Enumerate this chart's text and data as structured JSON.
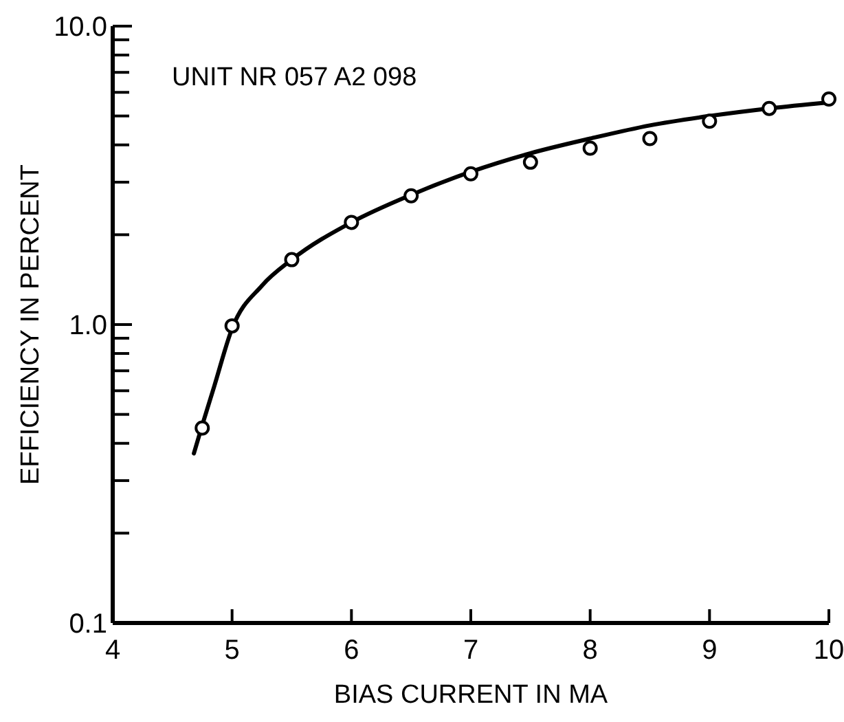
{
  "chart_data": {
    "type": "scatter",
    "xlabel": "BIAS CURRENT IN MA",
    "ylabel": "EFFICIENCY IN PERCENT",
    "annotations": [
      "UNIT NR 057 A2 098"
    ],
    "log": "y",
    "grid": false,
    "marker": "circle",
    "xlim": [
      4,
      10
    ],
    "xticks": [
      4,
      5,
      6,
      7,
      8,
      9,
      10
    ],
    "ylim": [
      0.1,
      10.0
    ],
    "yticks": [
      {
        "value": 0.1,
        "label": "0.1"
      },
      {
        "value": 0.2,
        "label": null
      },
      {
        "value": 0.3,
        "label": null
      },
      {
        "value": 0.4,
        "label": null
      },
      {
        "value": 0.5,
        "label": null
      },
      {
        "value": 0.6,
        "label": null
      },
      {
        "value": 0.7,
        "label": null
      },
      {
        "value": 0.8,
        "label": null
      },
      {
        "value": 0.9,
        "label": null
      },
      {
        "value": 1.0,
        "label": "1.0"
      },
      {
        "value": 2,
        "label": null
      },
      {
        "value": 3,
        "label": null
      },
      {
        "value": 4,
        "label": null
      },
      {
        "value": 5,
        "label": null
      },
      {
        "value": 6,
        "label": null
      },
      {
        "value": 7,
        "label": null
      },
      {
        "value": 8,
        "label": null
      },
      {
        "value": 9,
        "label": null
      },
      {
        "value": 10.0,
        "label": "10.0"
      }
    ],
    "series": [
      {
        "type": "line",
        "color": "#000000",
        "marker": "none",
        "line_style": "solid",
        "x": [
          4.68,
          4.75,
          4.85,
          5.0,
          5.25,
          5.5,
          6.0,
          6.5,
          7.0,
          7.5,
          8.0,
          8.5,
          9.0,
          9.5,
          10.0
        ],
        "values": [
          0.37,
          0.46,
          0.62,
          0.97,
          1.35,
          1.65,
          2.2,
          2.72,
          3.25,
          3.75,
          4.2,
          4.65,
          5.0,
          5.3,
          5.55
        ]
      },
      {
        "color": "#000000",
        "x": [
          4.75,
          5.0,
          5.5,
          6.0,
          6.5,
          7.0,
          7.5,
          8.0,
          8.5,
          9.0,
          9.5,
          10.0
        ],
        "values": [
          0.45,
          0.99,
          1.65,
          2.2,
          2.7,
          3.2,
          3.5,
          3.9,
          4.2,
          4.8,
          5.3,
          5.7
        ]
      }
    ]
  }
}
